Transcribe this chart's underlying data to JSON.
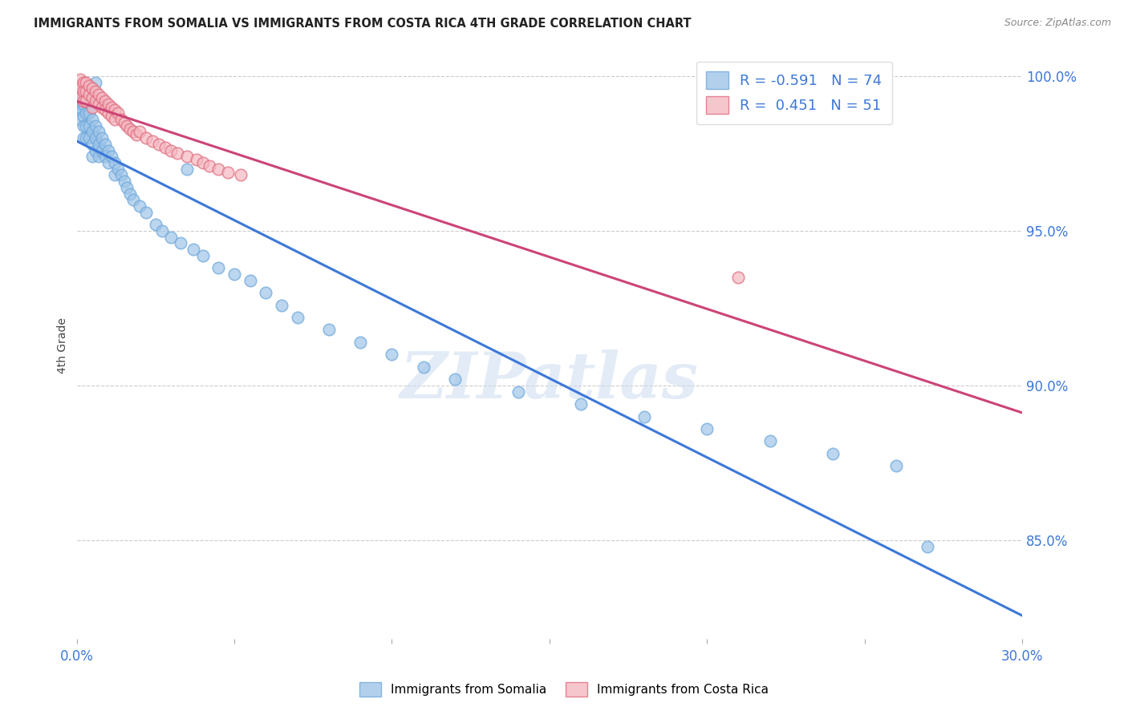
{
  "title": "IMMIGRANTS FROM SOMALIA VS IMMIGRANTS FROM COSTA RICA 4TH GRADE CORRELATION CHART",
  "source": "Source: ZipAtlas.com",
  "ylabel": "4th Grade",
  "ylabel_right_ticks": [
    "100.0%",
    "95.0%",
    "90.0%",
    "85.0%"
  ],
  "ylabel_right_values": [
    1.0,
    0.95,
    0.9,
    0.85
  ],
  "xmin": 0.0,
  "xmax": 0.3,
  "ymin": 0.818,
  "ymax": 1.008,
  "somalia_color": "#9fc5e8",
  "somalia_edge": "#6fa8dc",
  "costarica_color": "#f4b8c1",
  "costarica_edge": "#e06c7e",
  "somalia_line_color": "#3c78d8",
  "costarica_line_color": "#cc4477",
  "r_somalia": -0.591,
  "n_somalia": 74,
  "r_costarica": 0.451,
  "n_costarica": 51,
  "legend_label_somalia": "Immigrants from Somalia",
  "legend_label_costarica": "Immigrants from Costa Rica",
  "somalia_x": [
    0.0005,
    0.0008,
    0.001,
    0.001,
    0.001,
    0.001,
    0.0015,
    0.002,
    0.002,
    0.002,
    0.002,
    0.002,
    0.003,
    0.003,
    0.003,
    0.003,
    0.004,
    0.004,
    0.004,
    0.005,
    0.005,
    0.005,
    0.005,
    0.006,
    0.006,
    0.006,
    0.007,
    0.007,
    0.007,
    0.008,
    0.008,
    0.009,
    0.009,
    0.01,
    0.01,
    0.011,
    0.012,
    0.012,
    0.013,
    0.014,
    0.015,
    0.016,
    0.017,
    0.018,
    0.02,
    0.022,
    0.025,
    0.027,
    0.03,
    0.033,
    0.037,
    0.04,
    0.045,
    0.05,
    0.055,
    0.06,
    0.065,
    0.07,
    0.08,
    0.09,
    0.1,
    0.11,
    0.12,
    0.14,
    0.16,
    0.18,
    0.2,
    0.22,
    0.24,
    0.26,
    0.003,
    0.006,
    0.035,
    0.27
  ],
  "somalia_y": [
    0.993,
    0.991,
    0.997,
    0.994,
    0.99,
    0.986,
    0.989,
    0.995,
    0.991,
    0.987,
    0.984,
    0.98,
    0.992,
    0.988,
    0.984,
    0.98,
    0.988,
    0.984,
    0.98,
    0.986,
    0.982,
    0.978,
    0.974,
    0.984,
    0.98,
    0.976,
    0.982,
    0.978,
    0.974,
    0.98,
    0.976,
    0.978,
    0.974,
    0.976,
    0.972,
    0.974,
    0.972,
    0.968,
    0.97,
    0.968,
    0.966,
    0.964,
    0.962,
    0.96,
    0.958,
    0.956,
    0.952,
    0.95,
    0.948,
    0.946,
    0.944,
    0.942,
    0.938,
    0.936,
    0.934,
    0.93,
    0.926,
    0.922,
    0.918,
    0.914,
    0.91,
    0.906,
    0.902,
    0.898,
    0.894,
    0.89,
    0.886,
    0.882,
    0.878,
    0.874,
    0.996,
    0.998,
    0.97,
    0.848
  ],
  "costarica_x": [
    0.0005,
    0.001,
    0.001,
    0.001,
    0.002,
    0.002,
    0.002,
    0.003,
    0.003,
    0.003,
    0.004,
    0.004,
    0.005,
    0.005,
    0.005,
    0.006,
    0.006,
    0.007,
    0.007,
    0.008,
    0.008,
    0.009,
    0.009,
    0.01,
    0.01,
    0.011,
    0.011,
    0.012,
    0.012,
    0.013,
    0.014,
    0.015,
    0.016,
    0.017,
    0.018,
    0.019,
    0.02,
    0.022,
    0.024,
    0.026,
    0.028,
    0.03,
    0.032,
    0.035,
    0.038,
    0.04,
    0.042,
    0.045,
    0.048,
    0.052,
    0.21
  ],
  "costarica_y": [
    0.997,
    0.999,
    0.996,
    0.993,
    0.998,
    0.995,
    0.992,
    0.998,
    0.995,
    0.992,
    0.997,
    0.994,
    0.996,
    0.993,
    0.99,
    0.995,
    0.992,
    0.994,
    0.991,
    0.993,
    0.99,
    0.992,
    0.989,
    0.991,
    0.988,
    0.99,
    0.987,
    0.989,
    0.986,
    0.988,
    0.986,
    0.985,
    0.984,
    0.983,
    0.982,
    0.981,
    0.982,
    0.98,
    0.979,
    0.978,
    0.977,
    0.976,
    0.975,
    0.974,
    0.973,
    0.972,
    0.971,
    0.97,
    0.969,
    0.968,
    0.935
  ],
  "watermark": "ZIPatlas",
  "grid_color": "#cccccc",
  "background_color": "#ffffff"
}
